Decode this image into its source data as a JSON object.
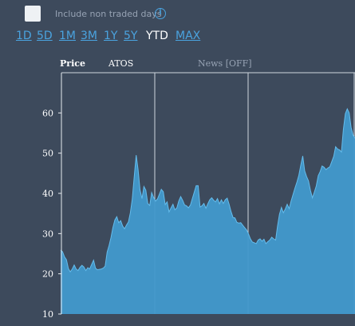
{
  "controls": {
    "include_non_traded_label": "Include non traded days",
    "include_non_traded_checked": false,
    "info_icon": "info-icon"
  },
  "periods": [
    "1D",
    "5D",
    "1M",
    "3M",
    "1Y",
    "5Y",
    "YTD",
    "MAX"
  ],
  "active_period": "YTD",
  "tabs": {
    "price": "Price",
    "symbol": "ATOS",
    "news": "News [OFF]"
  },
  "colors": {
    "background": "#3d4a5c",
    "area_fill": "#4199cc",
    "area_line": "#64bcec",
    "accent": "#4aa3df"
  },
  "chart_data": {
    "type": "area",
    "title": "",
    "xlabel": "",
    "ylabel": "",
    "ylim": [
      10,
      70
    ],
    "yticks": [
      10,
      20,
      30,
      40,
      50,
      60
    ],
    "grid": true,
    "series": [
      {
        "values": [
          25.9,
          25.5,
          24.2,
          23.5,
          21.3,
          20.5,
          21.2,
          22.2,
          21.2,
          20.8,
          21.6,
          22.1,
          21.7,
          20.8,
          21.5,
          21.2,
          22.3,
          23.4,
          21.4,
          21.0,
          21.1,
          21.2,
          21.4,
          21.9,
          25.4,
          27.0,
          29.0,
          31.5,
          33.4,
          34.2,
          32.7,
          33.2,
          31.9,
          31.2,
          32.1,
          32.9,
          35.2,
          38.6,
          44.3,
          49.5,
          45.9,
          40.9,
          38.7,
          41.7,
          40.8,
          37.5,
          37.0,
          40.2,
          39.0,
          38.1,
          38.6,
          39.8,
          41.0,
          40.4,
          37.2,
          37.9,
          35.4,
          36.4,
          37.3,
          35.9,
          36.4,
          38.1,
          39.2,
          38.3,
          37.1,
          36.9,
          36.4,
          37.1,
          38.7,
          40.3,
          41.9,
          41.9,
          36.6,
          36.9,
          37.5,
          36.3,
          37.4,
          38.4,
          38.9,
          38.3,
          37.9,
          38.7,
          37.4,
          38.4,
          37.5,
          38.4,
          38.8,
          37.3,
          35.5,
          34.0,
          33.9,
          32.8,
          32.6,
          32.7,
          32.1,
          31.5,
          30.9,
          29.9,
          28.7,
          27.9,
          27.7,
          27.5,
          28.4,
          28.7,
          28.1,
          28.6,
          27.5,
          28.0,
          28.4,
          29.1,
          28.7,
          28.4,
          31.9,
          34.8,
          36.5,
          35.2,
          36.1,
          37.3,
          36.2,
          38.1,
          39.7,
          41.3,
          42.8,
          44.5,
          47.0,
          49.3,
          45.6,
          44.2,
          43.1,
          40.7,
          38.9,
          40.3,
          41.8,
          44.4,
          45.4,
          46.8,
          46.5,
          45.9,
          46.3,
          46.6,
          47.9,
          49.2,
          51.6,
          51.0,
          50.8,
          50.3,
          55.9,
          59.8,
          61.0,
          60.0,
          56.4,
          54.5,
          53.7
        ]
      }
    ]
  }
}
